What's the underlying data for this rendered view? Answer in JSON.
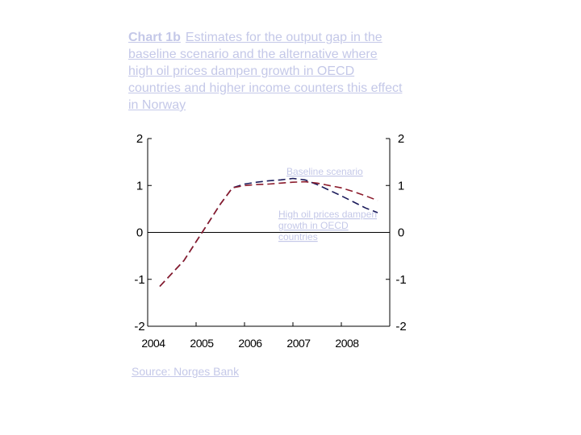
{
  "title": {
    "number": "Chart 1b",
    "text": "Estimates for the output gap in the baseline scenario and the alternative where high oil prices dampen growth in OECD countries and higher income counters this effect in Norway"
  },
  "source": "Source: Norges Bank",
  "chart_data": {
    "type": "line",
    "title": "Chart 1b  Estimates for the output gap in the baseline scenario and the alternative where high oil prices dampen growth in OECD countries and higher income counters this effect in Norway",
    "xlabel": "",
    "ylabel": "",
    "x_ticks": [
      "2004",
      "2005",
      "2006",
      "2007",
      "2008"
    ],
    "y_ticks": [
      2,
      1,
      0,
      -1,
      -2
    ],
    "ylim": [
      -2,
      2
    ],
    "xlim": [
      2004,
      2009
    ],
    "grid": false,
    "zero_line": true,
    "series": [
      {
        "name": "Baseline scenario",
        "color": "#8b1a2b",
        "dash": "dashed",
        "x": [
          2004.25,
          2004.75,
          2005.0,
          2005.25,
          2005.5,
          2005.75,
          2006.0,
          2006.25,
          2006.5,
          2006.75,
          2007.0,
          2007.25,
          2007.5,
          2007.75,
          2008.0,
          2008.25,
          2008.5,
          2008.75
        ],
        "y": [
          -1.15,
          -0.6,
          -0.2,
          0.2,
          0.6,
          0.95,
          1.0,
          1.02,
          1.03,
          1.05,
          1.07,
          1.08,
          1.05,
          1.0,
          0.95,
          0.87,
          0.78,
          0.68
        ]
      },
      {
        "name": "High oil prices dampen growth in OECD countries",
        "color": "#1a1a5a",
        "dash": "dashed",
        "x": [
          2004.25,
          2004.75,
          2005.0,
          2005.25,
          2005.5,
          2005.75,
          2006.0,
          2006.25,
          2006.5,
          2006.75,
          2007.0,
          2007.25,
          2007.5,
          2007.75,
          2008.0,
          2008.25,
          2008.5,
          2008.75
        ],
        "y": [
          -1.15,
          -0.6,
          -0.2,
          0.2,
          0.6,
          0.95,
          1.03,
          1.07,
          1.1,
          1.12,
          1.15,
          1.12,
          1.02,
          0.9,
          0.78,
          0.65,
          0.52,
          0.42
        ]
      }
    ],
    "annotations": [
      {
        "text": "Baseline scenario"
      },
      {
        "lines": [
          "High oil prices dampen",
          "growth in OECD",
          "countries"
        ]
      }
    ],
    "right_axis_ticks": [
      2,
      1,
      0,
      -1,
      -2
    ]
  }
}
